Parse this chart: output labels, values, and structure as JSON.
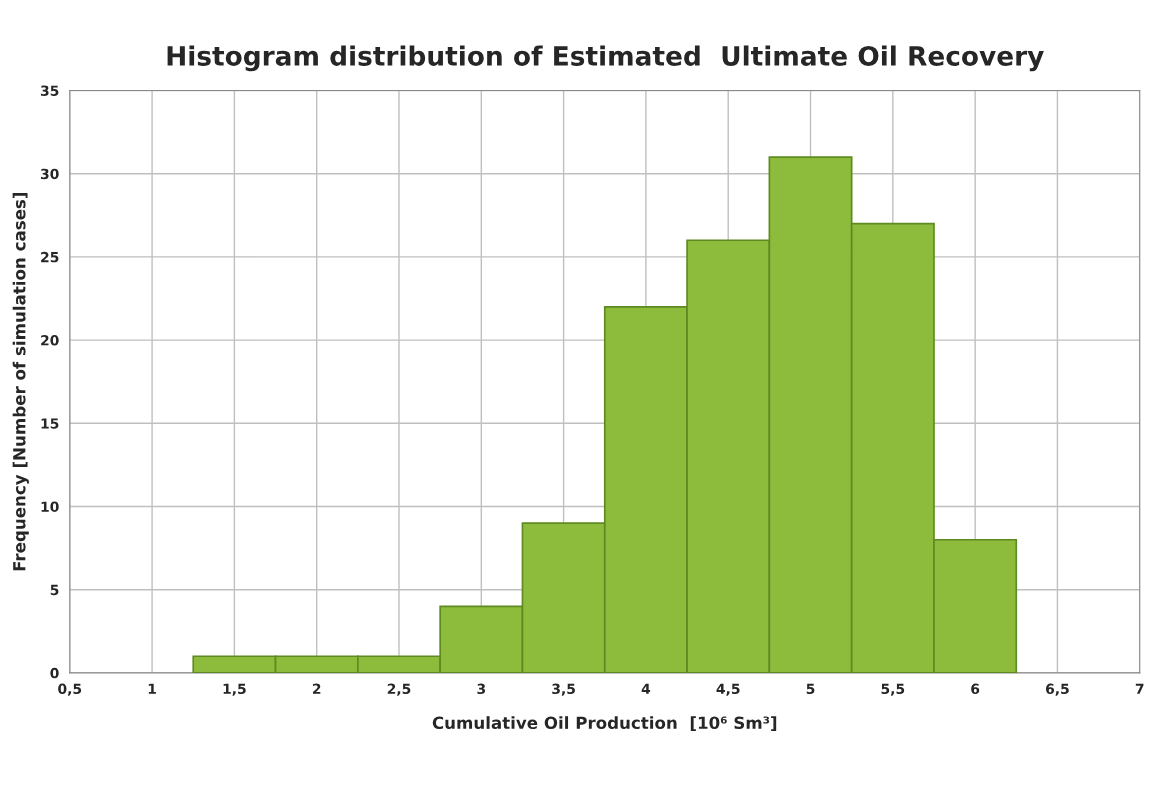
{
  "chart_data": {
    "type": "histogram",
    "title": "Histogram distribution of Estimated  Ultimate Oil Recovery",
    "xlabel": "Cumulative Oil Production  [10⁶ Sm³]",
    "ylabel": "Frequency [Number of simulation cases]",
    "bins": [
      1.25,
      1.75,
      2.25,
      2.75,
      3.25,
      3.75,
      4.25,
      4.75,
      5.25,
      5.75,
      6.25
    ],
    "values": [
      1,
      1,
      1,
      4,
      9,
      22,
      26,
      31,
      27,
      8
    ],
    "color": "#8dbb3c",
    "xlim": [
      0.5,
      7
    ],
    "xticks": [
      {
        "value": 0.5,
        "label": "0,5"
      },
      1,
      {
        "value": 1.5,
        "label": "1,5"
      },
      2,
      {
        "value": 2.5,
        "label": "2,5"
      },
      3,
      {
        "value": 3.5,
        "label": "3,5"
      },
      4,
      {
        "value": 4.5,
        "label": "4,5"
      },
      5,
      {
        "value": 5.5,
        "label": "5,5"
      },
      6,
      {
        "value": 6.5,
        "label": "6,5"
      },
      7
    ],
    "ylim": [
      0,
      35
    ],
    "yticks": [
      0,
      5,
      10,
      15,
      20,
      25,
      30,
      35
    ],
    "grid": true
  }
}
